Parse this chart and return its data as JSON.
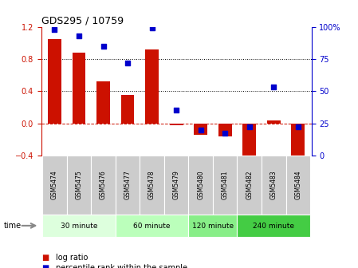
{
  "title": "GDS295 / 10759",
  "samples": [
    "GSM5474",
    "GSM5475",
    "GSM5476",
    "GSM5477",
    "GSM5478",
    "GSM5479",
    "GSM5480",
    "GSM5481",
    "GSM5482",
    "GSM5483",
    "GSM5484"
  ],
  "log_ratio": [
    1.05,
    0.88,
    0.52,
    0.35,
    0.92,
    -0.02,
    -0.14,
    -0.16,
    -0.45,
    0.04,
    -0.42
  ],
  "percentile_rank": [
    98,
    93,
    85,
    72,
    99,
    35,
    20,
    17,
    22,
    53,
    22
  ],
  "groups": [
    {
      "label": "30 minute",
      "start": 0,
      "end": 3,
      "color": "#ddffdd"
    },
    {
      "label": "60 minute",
      "start": 3,
      "end": 6,
      "color": "#bbffbb"
    },
    {
      "label": "120 minute",
      "start": 6,
      "end": 8,
      "color": "#88ee88"
    },
    {
      "label": "240 minute",
      "start": 8,
      "end": 11,
      "color": "#44cc44"
    }
  ],
  "bar_color": "#cc1100",
  "dot_color": "#0000cc",
  "ylim_left": [
    -0.4,
    1.2
  ],
  "ylim_right": [
    0,
    100
  ],
  "yticks_left": [
    -0.4,
    0.0,
    0.4,
    0.8,
    1.2
  ],
  "yticks_right": [
    0,
    25,
    50,
    75,
    100
  ],
  "hline_y": [
    0.4,
    0.8
  ],
  "zero_line_y": 0.0,
  "bg_color": "#ffffff",
  "sample_box_color": "#cccccc",
  "legend_log_ratio": "log ratio",
  "legend_percentile": "percentile rank within the sample",
  "time_label": "time"
}
